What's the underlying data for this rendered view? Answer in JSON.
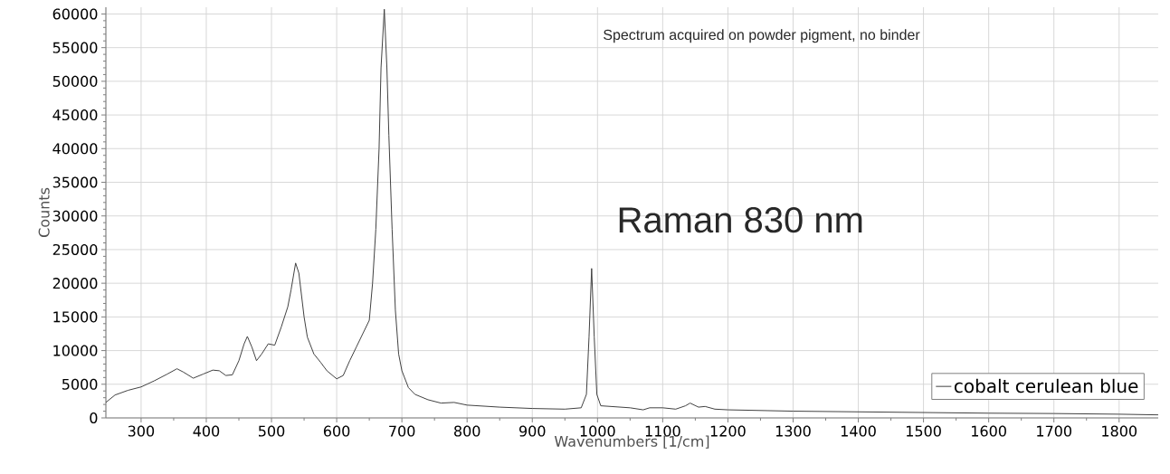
{
  "chart_data": {
    "type": "line",
    "xlabel": "Wavenumbers [1/cm]",
    "ylabel": "Counts",
    "annotations": [
      "Spectrum acquired on powder pigment, no binder",
      "Raman 830 nm"
    ],
    "xlim": [
      246,
      1860
    ],
    "ylim": [
      0,
      61000
    ],
    "xticks": [
      300,
      400,
      500,
      600,
      700,
      800,
      900,
      1000,
      1100,
      1200,
      1300,
      1400,
      1500,
      1600,
      1700,
      1800
    ],
    "yticks": [
      0,
      5000,
      10000,
      15000,
      20000,
      25000,
      30000,
      35000,
      40000,
      45000,
      50000,
      55000,
      60000
    ],
    "grid": true,
    "legend": "bottom right",
    "series": [
      {
        "name": "cobalt cerulean blue",
        "color": "#404040",
        "x": [
          246,
          260,
          280,
          300,
          320,
          340,
          355,
          365,
          380,
          395,
          410,
          420,
          430,
          440,
          450,
          458,
          463,
          470,
          477,
          485,
          495,
          505,
          515,
          525,
          530,
          537,
          542,
          550,
          555,
          565,
          575,
          585,
          600,
          610,
          620,
          630,
          640,
          650,
          655,
          660,
          665,
          668,
          673,
          677,
          680,
          685,
          690,
          695,
          700,
          710,
          720,
          740,
          760,
          780,
          800,
          850,
          900,
          950,
          975,
          983,
          987,
          991,
          995,
          999,
          1005,
          1050,
          1070,
          1080,
          1100,
          1120,
          1135,
          1142,
          1155,
          1165,
          1180,
          1200,
          1300,
          1400,
          1500,
          1600,
          1700,
          1800,
          1860
        ],
        "values": [
          2300,
          3400,
          4100,
          4600,
          5500,
          6500,
          7300,
          6800,
          5900,
          6500,
          7100,
          7000,
          6300,
          6400,
          8500,
          11000,
          12100,
          10500,
          8500,
          9500,
          11000,
          10800,
          13500,
          16500,
          19000,
          23000,
          21500,
          15000,
          12000,
          9500,
          8300,
          7000,
          5800,
          6300,
          8500,
          10500,
          12500,
          14500,
          20000,
          28000,
          40000,
          52000,
          60700,
          52000,
          42000,
          28000,
          16000,
          9500,
          7000,
          4500,
          3500,
          2700,
          2200,
          2300,
          1900,
          1600,
          1400,
          1300,
          1500,
          3500,
          12000,
          22200,
          12000,
          3500,
          1800,
          1500,
          1200,
          1500,
          1500,
          1300,
          1800,
          2200,
          1600,
          1700,
          1300,
          1200,
          1000,
          900,
          800,
          700,
          650,
          550,
          450
        ]
      }
    ]
  }
}
